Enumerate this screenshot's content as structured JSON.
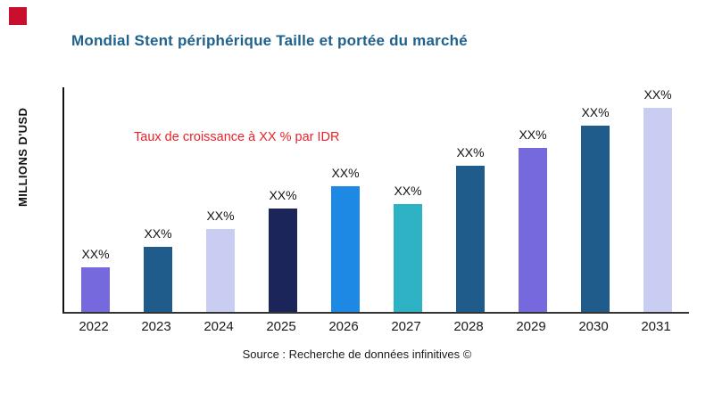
{
  "brand_color": "#C8102E",
  "title": "Mondial Stent périphérique Taille et portée du marché",
  "annotation": "Taux de croissance à XX % par IDR",
  "ylabel": "MILLIONS D'USD",
  "source": "Source : Recherche de données infinitives ©",
  "chart_data": {
    "type": "bar",
    "title": "Mondial Stent périphérique Taille et portée du marché",
    "xlabel": "",
    "ylabel": "MILLIONS D'USD",
    "ylim": [
      0,
      100
    ],
    "grid": false,
    "legend": false,
    "categories": [
      "2022",
      "2023",
      "2024",
      "2025",
      "2026",
      "2027",
      "2028",
      "2029",
      "2030",
      "2031"
    ],
    "values": [
      20,
      29,
      37,
      46,
      56,
      48,
      65,
      73,
      83,
      91
    ],
    "value_labels": [
      "XX%",
      "XX%",
      "XX%",
      "XX%",
      "XX%",
      "XX%",
      "XX%",
      "XX%",
      "XX%",
      "XX%"
    ],
    "bar_colors": [
      "#7668DD",
      "#1F5C8B",
      "#C9CDF2",
      "#1B2559",
      "#1E88E5",
      "#2EB3C4",
      "#1F5C8B",
      "#7668DD",
      "#1F5C8B",
      "#C9CDF2"
    ],
    "annotation": "Taux de croissance à XX % par IDR",
    "annotation_color": "#E8232A"
  }
}
